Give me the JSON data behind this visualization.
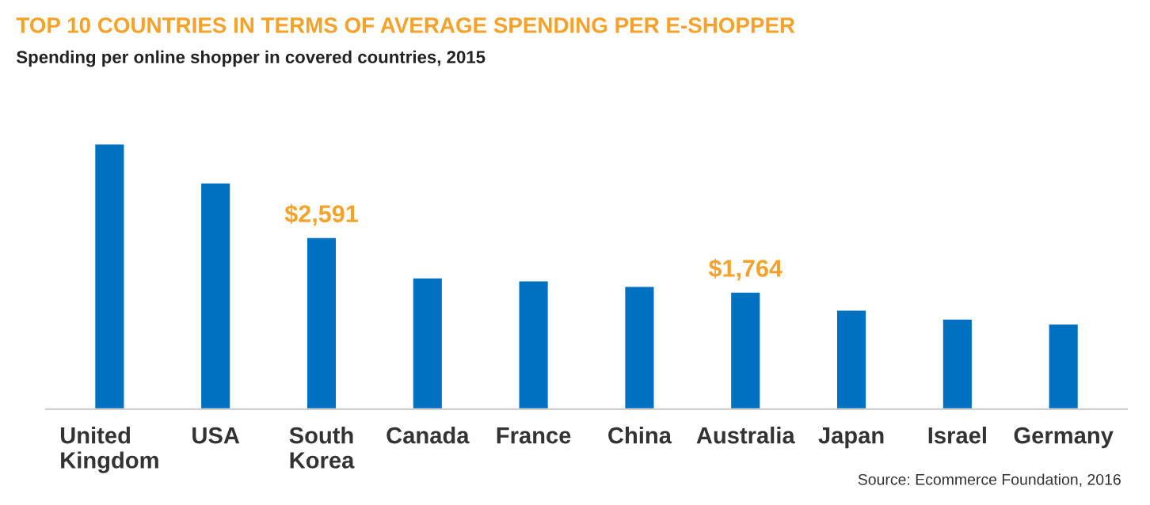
{
  "chart_data": {
    "type": "bar",
    "title": "TOP 10 COUNTRIES IN TERMS OF AVERAGE SPENDING PER E-SHOPPER",
    "subtitle": "Spending per online shopper in covered countries, 2015",
    "categories": [
      "United\nKingdom",
      "USA",
      "South\nKorea",
      "Canada",
      "France",
      "China",
      "Australia",
      "Japan",
      "Israel",
      "Germany"
    ],
    "values": [
      4010,
      3420,
      2591,
      1980,
      1935,
      1850,
      1764,
      1490,
      1355,
      1280
    ],
    "value_labels": [
      null,
      null,
      "$2,591",
      null,
      null,
      null,
      "$1,764",
      null,
      null,
      null
    ],
    "color": "#0070c0",
    "annotations": [
      "Source: Ecommerce Foundation, 2016"
    ],
    "grid": false,
    "legend": false
  }
}
